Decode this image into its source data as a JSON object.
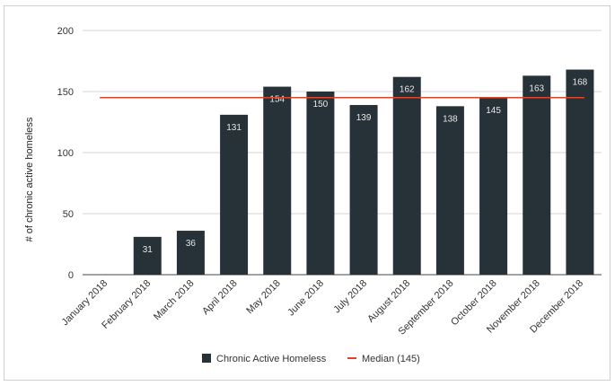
{
  "chart_data": {
    "type": "bar",
    "title": "",
    "xlabel": "",
    "ylabel": "# of chronic active homeless",
    "ylim": [
      0,
      200
    ],
    "yticks": [
      0,
      50,
      100,
      150,
      200
    ],
    "grid": true,
    "legend_position": "bottom",
    "categories": [
      "January 2018",
      "February 2018",
      "March 2018",
      "April 2018",
      "May 2018",
      "June 2018",
      "July 2018",
      "August 2018",
      "September 2018",
      "October 2018",
      "November 2018",
      "December 2018"
    ],
    "series": [
      {
        "name": "Chronic Active Homeless",
        "type": "bar",
        "color": "#263238",
        "values": [
          0,
          31,
          36,
          131,
          154,
          150,
          139,
          162,
          138,
          145,
          163,
          168
        ],
        "data_labels": [
          "",
          "31",
          "36",
          "131",
          "154",
          "150",
          "139",
          "162",
          "138",
          "145",
          "163",
          "168"
        ]
      },
      {
        "name": "Median (145)",
        "type": "line",
        "color": "#d9462b",
        "value": 145
      }
    ]
  }
}
